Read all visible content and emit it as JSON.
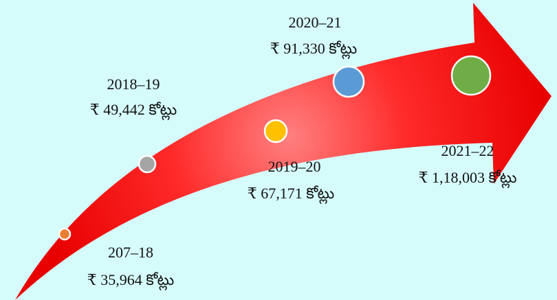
{
  "items": [
    {
      "year": "207–18",
      "amount": "₹ 35,964 కోట్లు"
    },
    {
      "year": "2018–19",
      "amount": "₹ 49,442 కోట్లు"
    },
    {
      "year": "2019–20",
      "amount": "₹ 67,171 కోట్లు"
    },
    {
      "year": "2020–21",
      "amount": "₹ 91,330 కోట్లు"
    },
    {
      "year": "2021–22",
      "amount": "₹ 1,18,003 కోట్లు"
    }
  ]
}
